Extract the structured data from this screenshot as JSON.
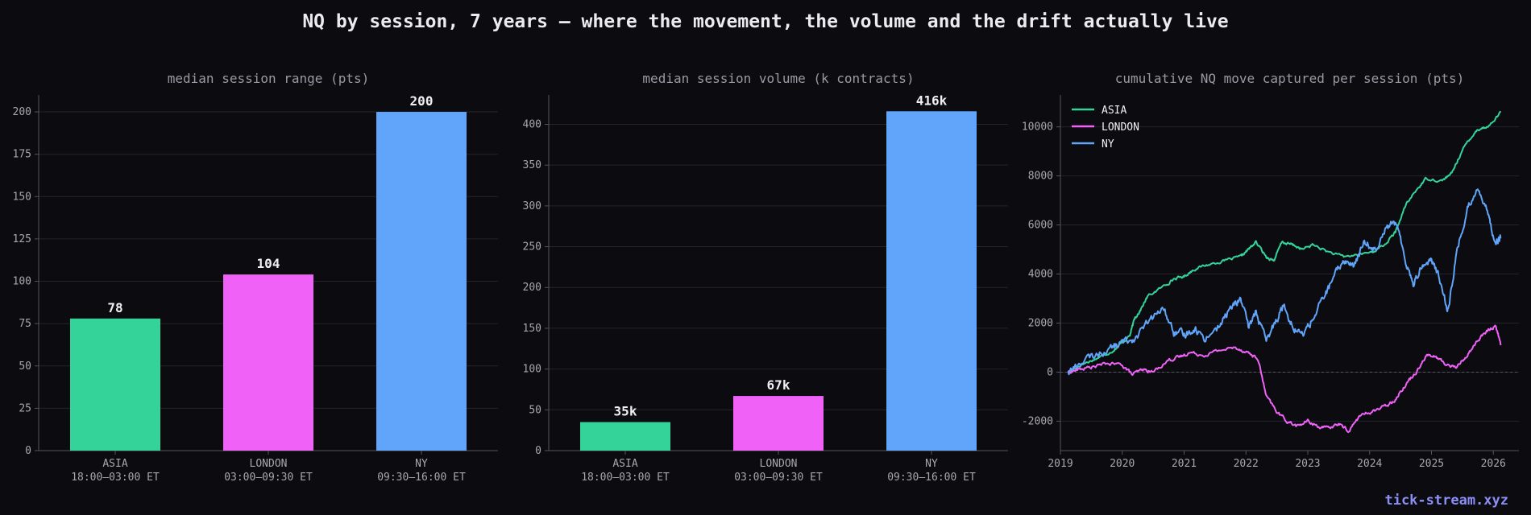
{
  "title": "NQ by session, 7 years — where the movement, the volume and the drift actually live",
  "watermark": "tick-stream.xyz",
  "colors": {
    "background": "#0b0b10",
    "grid": "#24242c",
    "axis": "#55555f",
    "tick_text": "#a7a7b0",
    "title_text": "#9a9aa4",
    "label_text": "#f0f0f4",
    "asia": "#34d399",
    "london": "#f062f7",
    "ny": "#60a5fa"
  },
  "chart_data": [
    {
      "type": "bar",
      "title": "median session range (pts)",
      "categories": [
        "ASIA",
        "LONDON",
        "NY"
      ],
      "category_sublabels": [
        "18:00–03:00 ET",
        "03:00–09:30 ET",
        "09:30–16:00 ET"
      ],
      "values": [
        78,
        104,
        200
      ],
      "value_labels": [
        "78",
        "104",
        "200"
      ],
      "ylim": [
        0,
        210
      ],
      "yticks": [
        0,
        25,
        50,
        75,
        100,
        125,
        150,
        175,
        200
      ],
      "grid": true,
      "colors": [
        "#34d399",
        "#f062f7",
        "#60a5fa"
      ]
    },
    {
      "type": "bar",
      "title": "median session volume (k contracts)",
      "categories": [
        "ASIA",
        "LONDON",
        "NY"
      ],
      "category_sublabels": [
        "18:00–03:00 ET",
        "03:00–09:30 ET",
        "09:30–16:00 ET"
      ],
      "values": [
        35,
        67,
        416
      ],
      "value_labels": [
        "35k",
        "67k",
        "416k"
      ],
      "ylim": [
        0,
        436
      ],
      "yticks": [
        0,
        50,
        100,
        150,
        200,
        250,
        300,
        350,
        400
      ],
      "grid": true,
      "colors": [
        "#34d399",
        "#f062f7",
        "#60a5fa"
      ]
    },
    {
      "type": "line",
      "title": "cumulative NQ move captured per session (pts)",
      "xlim": [
        "2019-01-01",
        "2026-06-01"
      ],
      "ylim": [
        -3200,
        11300
      ],
      "xticks": [
        "2019",
        "2020",
        "2021",
        "2022",
        "2023",
        "2024",
        "2025",
        "2026"
      ],
      "yticks": [
        -2000,
        0,
        2000,
        4000,
        6000,
        8000,
        10000
      ],
      "grid": true,
      "zero_line": true,
      "legend_position": "upper-left",
      "series": [
        {
          "name": "ASIA",
          "color": "#34d399",
          "points": [
            [
              "2019-02-15",
              0
            ],
            [
              "2019-05-01",
              300
            ],
            [
              "2019-08-01",
              550
            ],
            [
              "2019-11-01",
              850
            ],
            [
              "2020-01-01",
              1200
            ],
            [
              "2020-02-15",
              1500
            ],
            [
              "2020-03-15",
              2200
            ],
            [
              "2020-04-15",
              2500
            ],
            [
              "2020-06-01",
              3100
            ],
            [
              "2020-09-01",
              3500
            ],
            [
              "2020-11-01",
              3800
            ],
            [
              "2021-01-01",
              3900
            ],
            [
              "2021-03-01",
              4200
            ],
            [
              "2021-06-01",
              4400
            ],
            [
              "2021-09-01",
              4550
            ],
            [
              "2021-12-01",
              4700
            ],
            [
              "2022-01-15",
              5000
            ],
            [
              "2022-03-01",
              5300
            ],
            [
              "2022-05-01",
              4700
            ],
            [
              "2022-06-15",
              4550
            ],
            [
              "2022-08-01",
              5300
            ],
            [
              "2022-10-01",
              5200
            ],
            [
              "2022-12-01",
              5000
            ],
            [
              "2023-02-01",
              5200
            ],
            [
              "2023-05-01",
              4900
            ],
            [
              "2023-08-01",
              4700
            ],
            [
              "2023-11-01",
              4800
            ],
            [
              "2024-01-15",
              4900
            ],
            [
              "2024-04-01",
              5200
            ],
            [
              "2024-06-01",
              5700
            ],
            [
              "2024-08-01",
              6800
            ],
            [
              "2024-10-01",
              7400
            ],
            [
              "2024-12-01",
              7900
            ],
            [
              "2025-03-01",
              7800
            ],
            [
              "2025-05-01",
              8100
            ],
            [
              "2025-06-15",
              8800
            ],
            [
              "2025-08-01",
              9400
            ],
            [
              "2025-10-01",
              9900
            ],
            [
              "2025-12-01",
              10000
            ],
            [
              "2026-02-15",
              10600
            ]
          ]
        },
        {
          "name": "LONDON",
          "color": "#f062f7",
          "points": [
            [
              "2019-02-15",
              0
            ],
            [
              "2019-04-15",
              100
            ],
            [
              "2019-07-01",
              200
            ],
            [
              "2019-10-01",
              350
            ],
            [
              "2020-01-01",
              300
            ],
            [
              "2020-03-01",
              -100
            ],
            [
              "2020-05-01",
              100
            ],
            [
              "2020-07-01",
              0
            ],
            [
              "2020-10-01",
              500
            ],
            [
              "2020-12-01",
              600
            ],
            [
              "2021-02-01",
              800
            ],
            [
              "2021-05-01",
              700
            ],
            [
              "2021-08-01",
              900
            ],
            [
              "2021-11-01",
              1000
            ],
            [
              "2022-01-15",
              800
            ],
            [
              "2022-03-15",
              500
            ],
            [
              "2022-05-01",
              -1000
            ],
            [
              "2022-07-01",
              -1600
            ],
            [
              "2022-09-01",
              -2000
            ],
            [
              "2022-11-01",
              -2200
            ],
            [
              "2023-01-01",
              -2000
            ],
            [
              "2023-03-01",
              -2200
            ],
            [
              "2023-05-01",
              -2300
            ],
            [
              "2023-07-01",
              -2100
            ],
            [
              "2023-09-01",
              -2400
            ],
            [
              "2023-11-01",
              -1800
            ],
            [
              "2024-01-15",
              -1600
            ],
            [
              "2024-04-01",
              -1400
            ],
            [
              "2024-06-01",
              -1100
            ],
            [
              "2024-08-01",
              -500
            ],
            [
              "2024-10-01",
              0
            ],
            [
              "2024-12-01",
              700
            ],
            [
              "2025-02-01",
              600
            ],
            [
              "2025-04-01",
              300
            ],
            [
              "2025-06-01",
              200
            ],
            [
              "2025-08-01",
              700
            ],
            [
              "2025-10-01",
              1300
            ],
            [
              "2025-12-01",
              1700
            ],
            [
              "2026-01-15",
              1900
            ],
            [
              "2026-02-15",
              1100
            ]
          ]
        },
        {
          "name": "NY",
          "color": "#60a5fa",
          "points": [
            [
              "2019-02-15",
              0
            ],
            [
              "2019-05-01",
              400
            ],
            [
              "2019-08-01",
              700
            ],
            [
              "2019-11-01",
              1000
            ],
            [
              "2020-01-01",
              1200
            ],
            [
              "2020-03-15",
              1400
            ],
            [
              "2020-06-01",
              2000
            ],
            [
              "2020-09-01",
              2600
            ],
            [
              "2020-11-01",
              1600
            ],
            [
              "2021-01-01",
              1500
            ],
            [
              "2021-03-01",
              1800
            ],
            [
              "2021-05-01",
              1400
            ],
            [
              "2021-08-01",
              1900
            ],
            [
              "2021-10-01",
              2600
            ],
            [
              "2021-12-01",
              3000
            ],
            [
              "2022-01-15",
              1800
            ],
            [
              "2022-03-01",
              2500
            ],
            [
              "2022-05-01",
              1200
            ],
            [
              "2022-07-01",
              2200
            ],
            [
              "2022-08-15",
              2800
            ],
            [
              "2022-10-01",
              1900
            ],
            [
              "2022-12-01",
              1500
            ],
            [
              "2023-02-01",
              2200
            ],
            [
              "2023-04-01",
              3000
            ],
            [
              "2023-06-01",
              3800
            ],
            [
              "2023-08-01",
              4600
            ],
            [
              "2023-10-01",
              4300
            ],
            [
              "2023-12-01",
              5300
            ],
            [
              "2024-02-01",
              5000
            ],
            [
              "2024-04-01",
              5900
            ],
            [
              "2024-06-01",
              6100
            ],
            [
              "2024-08-01",
              4600
            ],
            [
              "2024-09-15",
              3600
            ],
            [
              "2024-11-01",
              4300
            ],
            [
              "2025-01-01",
              4600
            ],
            [
              "2025-03-01",
              3600
            ],
            [
              "2025-04-10",
              2500
            ],
            [
              "2025-06-01",
              5000
            ],
            [
              "2025-08-01",
              6600
            ],
            [
              "2025-10-01",
              7600
            ],
            [
              "2025-12-01",
              6400
            ],
            [
              "2026-01-15",
              5300
            ],
            [
              "2026-02-15",
              5500
            ]
          ]
        }
      ]
    }
  ]
}
